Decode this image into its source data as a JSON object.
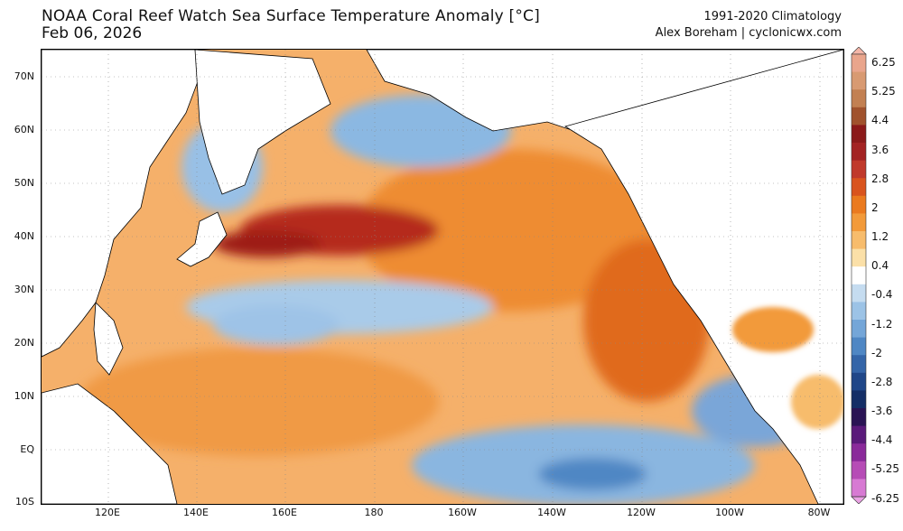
{
  "header": {
    "title": "NOAA Coral Reef Watch Sea Surface Temperature Anomaly [°C]",
    "date": "Feb 06, 2026",
    "climatology": "1991-2020 Climatology",
    "author": "Alex Boreham | cyclonicwx.com"
  },
  "map": {
    "lat_labels": [
      "70N",
      "60N",
      "50N",
      "40N",
      "30N",
      "20N",
      "10N",
      "EQ",
      "10S"
    ],
    "lon_labels": [
      "120E",
      "140E",
      "160E",
      "180",
      "160W",
      "140W",
      "120W",
      "100W",
      "80W"
    ]
  },
  "colorbar": {
    "labels": [
      "6.25",
      "5.25",
      "4.4",
      "3.6",
      "2.8",
      "2",
      "1.2",
      "0.4",
      "-0.4",
      "-1.2",
      "-2",
      "-2.8",
      "-3.6",
      "-4.4",
      "-5.25",
      "-6.25"
    ],
    "colors": [
      "#f4b6a8",
      "#e9a58c",
      "#d89a72",
      "#c28052",
      "#a0522d",
      "#8b1a1a",
      "#a32323",
      "#c0392b",
      "#d9541e",
      "#ea7a1f",
      "#f29a3a",
      "#f7bc6c",
      "#fbe0a8",
      "#ffffff",
      "#c5dcf0",
      "#9cc3e6",
      "#74a6d8",
      "#4f87c4",
      "#3465a8",
      "#1f4688",
      "#142e66",
      "#2a1454",
      "#5a1a7a",
      "#8a2a9a",
      "#b64cb6",
      "#d77ad3",
      "#eaa2e4"
    ]
  }
}
